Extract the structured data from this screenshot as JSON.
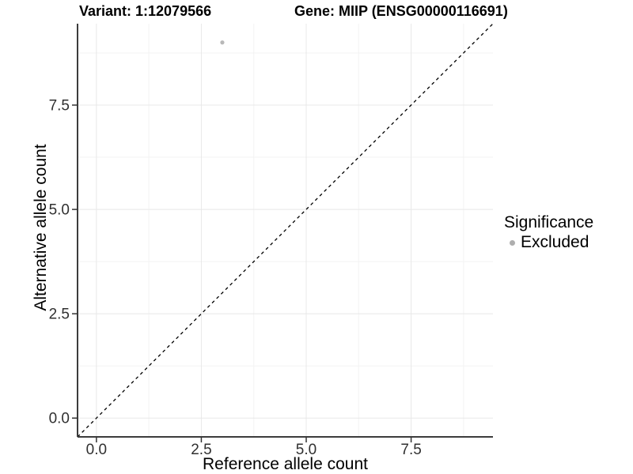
{
  "chart_data": {
    "type": "scatter",
    "title_left": "Variant: 1:12079566",
    "title_right": "Gene: MIIP (ENSG00000116691)",
    "xlabel": "Reference allele count",
    "ylabel": "Alternative allele count",
    "xlim": [
      -0.45,
      9.45
    ],
    "ylim": [
      -0.45,
      9.45
    ],
    "xticks": {
      "values": [
        0,
        2.5,
        5,
        7.5
      ],
      "labels": [
        "0.0",
        "2.5",
        "5.0",
        "7.5"
      ]
    },
    "yticks": {
      "values": [
        0,
        2.5,
        5,
        7.5
      ],
      "labels": [
        "0.0",
        "2.5",
        "5.0",
        "7.5"
      ]
    },
    "minor_gridlines": [
      1.25,
      3.75,
      6.25,
      8.75
    ],
    "grid": true,
    "points": [
      {
        "x": 3,
        "y": 9,
        "series": "Excluded",
        "color": "#b8b8b8",
        "radius": 2.6
      }
    ],
    "reference_line": {
      "slope": 1,
      "intercept": 0,
      "style": "dashed",
      "color": "#000000"
    },
    "legend": {
      "title": "Significance",
      "position": "right",
      "entries": [
        {
          "label": "Excluded",
          "color": "#aeaeae"
        }
      ]
    },
    "colors": {
      "axis_line": "#3c3c3c",
      "tick_mark": "#333333",
      "tick_label": "#303030",
      "gridline_major": "#e8e8e8",
      "gridline_minor": "#f3f3f3",
      "background": "#ffffff"
    }
  }
}
